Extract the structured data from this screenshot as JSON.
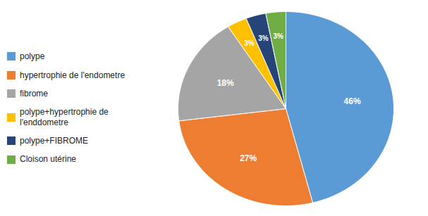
{
  "chart_data": {
    "type": "pie",
    "categories": [
      "polype",
      "hypertrophie de l'endometre",
      "fibrome",
      "polype+hypertrophie de\nl'enddometre",
      "polype+FIBROME",
      "Cloison utérine"
    ],
    "values": [
      46,
      27,
      18,
      3,
      3,
      3
    ],
    "value_labels": [
      "46%",
      "27%",
      "18%",
      "3%",
      "3%",
      "3%"
    ],
    "colors": [
      "#5B9BD5",
      "#ED7D31",
      "#A5A5A5",
      "#FFC000",
      "#264478",
      "#70AD47"
    ],
    "data_labels": true,
    "legend": "left"
  }
}
